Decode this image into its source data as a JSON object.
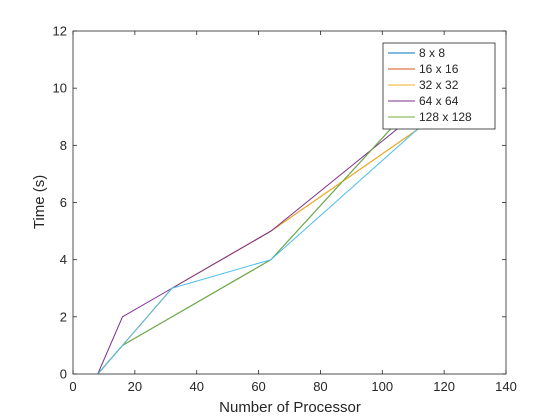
{
  "chart_data": {
    "type": "line",
    "xlabel": "Number of Processor",
    "ylabel": "Time (s)",
    "xlim": [
      0,
      140
    ],
    "ylim": [
      0,
      12
    ],
    "xticks": [
      "0",
      "20",
      "40",
      "60",
      "80",
      "100",
      "120",
      "140"
    ],
    "yticks": [
      "0",
      "2",
      "4",
      "6",
      "8",
      "10",
      "12"
    ],
    "grid": false,
    "legend_position": "top-right",
    "series": [
      {
        "name": "8 x 8",
        "color": "#0072BD",
        "x": [
          8,
          16,
          32,
          64,
          108
        ],
        "y": [
          0,
          1,
          2,
          4,
          9.2
        ]
      },
      {
        "name": "16 x 16",
        "color": "#D95319",
        "x": [
          8,
          16,
          32,
          64,
          120
        ],
        "y": [
          0,
          1,
          3,
          5,
          9.2
        ]
      },
      {
        "name": "32 x 32",
        "color": "#EDB120",
        "x": [
          8,
          16,
          32,
          64,
          120
        ],
        "y": [
          0,
          1,
          3,
          5,
          9.2
        ]
      },
      {
        "name": "64 x 64",
        "color": "#7E2F8E",
        "x": [
          8,
          16,
          32,
          64,
          112
        ],
        "y": [
          0,
          2,
          3,
          5,
          9.2
        ]
      },
      {
        "name": "128 x 128",
        "color": "#77AC30",
        "x": [
          8,
          16,
          32,
          64,
          108
        ],
        "y": [
          0,
          1,
          2,
          4,
          9.2
        ]
      },
      {
        "name": "",
        "color": "#4DBEEE",
        "x": [
          8,
          16,
          32,
          64,
          118
        ],
        "y": [
          0,
          1,
          3,
          4,
          9.2
        ]
      }
    ]
  }
}
